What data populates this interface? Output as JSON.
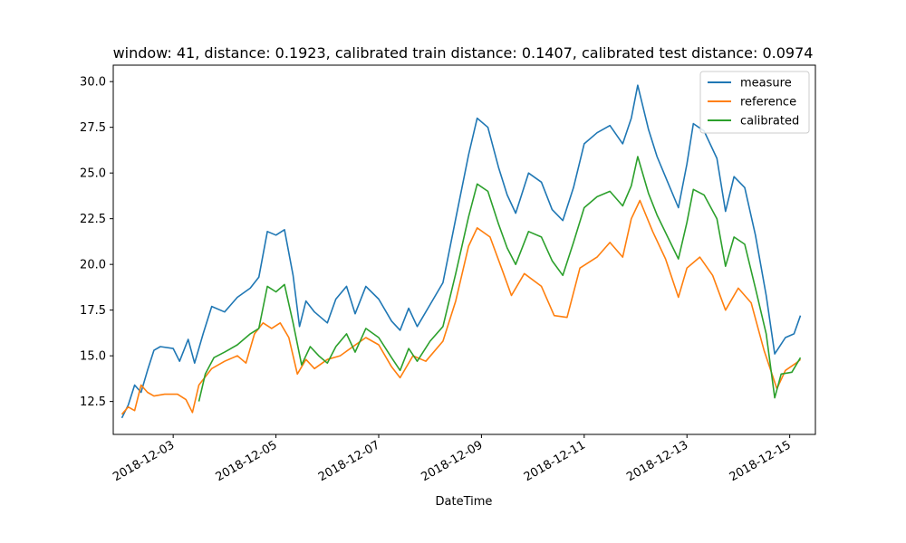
{
  "chart_data": {
    "type": "line",
    "title": "window: 41, distance: 0.1923, calibrated train distance: 0.1407, calibrated test distance: 0.0974",
    "xlabel": "DateTime",
    "ylabel": "",
    "xlim": [
      "2018-12-01T20:00",
      "2018-12-15T12:00"
    ],
    "ylim": [
      10.7,
      30.9
    ],
    "x_ticks": [
      {
        "date": "2018-12-03T00:00",
        "label": "2018-12-03"
      },
      {
        "date": "2018-12-05T00:00",
        "label": "2018-12-05"
      },
      {
        "date": "2018-12-07T00:00",
        "label": "2018-12-07"
      },
      {
        "date": "2018-12-09T00:00",
        "label": "2018-12-09"
      },
      {
        "date": "2018-12-11T00:00",
        "label": "2018-12-11"
      },
      {
        "date": "2018-12-13T00:00",
        "label": "2018-12-13"
      },
      {
        "date": "2018-12-15T00:00",
        "label": "2018-12-15"
      }
    ],
    "y_ticks": [
      {
        "value": 12.5,
        "label": "12.5"
      },
      {
        "value": 15.0,
        "label": "15.0"
      },
      {
        "value": 17.5,
        "label": "17.5"
      },
      {
        "value": 20.0,
        "label": "20.0"
      },
      {
        "value": 22.5,
        "label": "22.5"
      },
      {
        "value": 25.0,
        "label": "25.0"
      },
      {
        "value": 27.5,
        "label": "27.5"
      },
      {
        "value": 30.0,
        "label": "30.0"
      }
    ],
    "grid": false,
    "legend": "top-right",
    "series": [
      {
        "name": "measure",
        "color": "#1f77b4",
        "points": [
          [
            "2018-12-02T00:00",
            11.6
          ],
          [
            "2018-12-02T03:00",
            12.3
          ],
          [
            "2018-12-02T06:00",
            13.4
          ],
          [
            "2018-12-02T09:00",
            13.0
          ],
          [
            "2018-12-02T12:00",
            14.2
          ],
          [
            "2018-12-02T15:00",
            15.3
          ],
          [
            "2018-12-02T18:00",
            15.5
          ],
          [
            "2018-12-03T00:00",
            15.4
          ],
          [
            "2018-12-03T03:00",
            14.7
          ],
          [
            "2018-12-03T07:00",
            15.9
          ],
          [
            "2018-12-03T10:00",
            14.6
          ],
          [
            "2018-12-03T14:00",
            16.2
          ],
          [
            "2018-12-03T18:00",
            17.7
          ],
          [
            "2018-12-04T00:00",
            17.4
          ],
          [
            "2018-12-04T06:00",
            18.2
          ],
          [
            "2018-12-04T12:00",
            18.7
          ],
          [
            "2018-12-04T16:00",
            19.3
          ],
          [
            "2018-12-04T20:00",
            21.8
          ],
          [
            "2018-12-05T00:00",
            21.6
          ],
          [
            "2018-12-05T04:00",
            21.9
          ],
          [
            "2018-12-05T08:00",
            19.4
          ],
          [
            "2018-12-05T11:00",
            16.6
          ],
          [
            "2018-12-05T14:00",
            18.0
          ],
          [
            "2018-12-05T18:00",
            17.4
          ],
          [
            "2018-12-06T00:00",
            16.8
          ],
          [
            "2018-12-06T04:00",
            18.1
          ],
          [
            "2018-12-06T09:00",
            18.8
          ],
          [
            "2018-12-06T13:00",
            17.3
          ],
          [
            "2018-12-06T18:00",
            18.8
          ],
          [
            "2018-12-07T00:00",
            18.1
          ],
          [
            "2018-12-07T06:00",
            16.9
          ],
          [
            "2018-12-07T10:00",
            16.4
          ],
          [
            "2018-12-07T14:00",
            17.6
          ],
          [
            "2018-12-07T18:00",
            16.6
          ],
          [
            "2018-12-08T00:00",
            17.8
          ],
          [
            "2018-12-08T06:00",
            19.0
          ],
          [
            "2018-12-08T12:00",
            22.5
          ],
          [
            "2018-12-08T18:00",
            26.0
          ],
          [
            "2018-12-08T22:00",
            28.0
          ],
          [
            "2018-12-09T03:00",
            27.5
          ],
          [
            "2018-12-09T08:00",
            25.3
          ],
          [
            "2018-12-09T12:00",
            23.8
          ],
          [
            "2018-12-09T16:00",
            22.8
          ],
          [
            "2018-12-09T22:00",
            25.0
          ],
          [
            "2018-12-10T04:00",
            24.5
          ],
          [
            "2018-12-10T09:00",
            23.0
          ],
          [
            "2018-12-10T14:00",
            22.4
          ],
          [
            "2018-12-10T19:00",
            24.2
          ],
          [
            "2018-12-11T00:00",
            26.6
          ],
          [
            "2018-12-11T06:00",
            27.2
          ],
          [
            "2018-12-11T12:00",
            27.6
          ],
          [
            "2018-12-11T18:00",
            26.6
          ],
          [
            "2018-12-11T22:00",
            28.0
          ],
          [
            "2018-12-12T01:00",
            29.8
          ],
          [
            "2018-12-12T06:00",
            27.4
          ],
          [
            "2018-12-12T10:00",
            25.9
          ],
          [
            "2018-12-12T15:00",
            24.5
          ],
          [
            "2018-12-12T20:00",
            23.1
          ],
          [
            "2018-12-13T00:00",
            25.5
          ],
          [
            "2018-12-13T03:00",
            27.7
          ],
          [
            "2018-12-13T08:00",
            27.3
          ],
          [
            "2018-12-13T14:00",
            25.8
          ],
          [
            "2018-12-13T18:00",
            22.9
          ],
          [
            "2018-12-13T22:00",
            24.8
          ],
          [
            "2018-12-14T03:00",
            24.2
          ],
          [
            "2018-12-14T08:00",
            21.6
          ],
          [
            "2018-12-14T13:00",
            18.3
          ],
          [
            "2018-12-14T17:00",
            15.1
          ],
          [
            "2018-12-14T22:00",
            16.0
          ],
          [
            "2018-12-15T02:00",
            16.2
          ],
          [
            "2018-12-15T05:00",
            17.2
          ]
        ]
      },
      {
        "name": "reference",
        "color": "#ff7f0e",
        "points": [
          [
            "2018-12-02T00:00",
            11.8
          ],
          [
            "2018-12-02T03:00",
            12.2
          ],
          [
            "2018-12-02T06:00",
            12.0
          ],
          [
            "2018-12-02T09:00",
            13.4
          ],
          [
            "2018-12-02T12:00",
            13.0
          ],
          [
            "2018-12-02T15:00",
            12.8
          ],
          [
            "2018-12-02T20:00",
            12.9
          ],
          [
            "2018-12-03T02:00",
            12.9
          ],
          [
            "2018-12-03T06:00",
            12.6
          ],
          [
            "2018-12-03T09:00",
            11.9
          ],
          [
            "2018-12-03T12:00",
            13.4
          ],
          [
            "2018-12-03T18:00",
            14.3
          ],
          [
            "2018-12-04T00:00",
            14.7
          ],
          [
            "2018-12-04T06:00",
            15.0
          ],
          [
            "2018-12-04T10:00",
            14.6
          ],
          [
            "2018-12-04T14:00",
            16.2
          ],
          [
            "2018-12-04T18:00",
            16.8
          ],
          [
            "2018-12-04T22:00",
            16.5
          ],
          [
            "2018-12-05T02:00",
            16.8
          ],
          [
            "2018-12-05T06:00",
            16.0
          ],
          [
            "2018-12-05T10:00",
            14.0
          ],
          [
            "2018-12-05T14:00",
            14.8
          ],
          [
            "2018-12-05T18:00",
            14.3
          ],
          [
            "2018-12-06T00:00",
            14.8
          ],
          [
            "2018-12-06T06:00",
            15.0
          ],
          [
            "2018-12-06T12:00",
            15.5
          ],
          [
            "2018-12-06T18:00",
            16.0
          ],
          [
            "2018-12-07T00:00",
            15.6
          ],
          [
            "2018-12-07T06:00",
            14.4
          ],
          [
            "2018-12-07T10:00",
            13.8
          ],
          [
            "2018-12-07T16:00",
            15.0
          ],
          [
            "2018-12-07T22:00",
            14.7
          ],
          [
            "2018-12-08T06:00",
            15.8
          ],
          [
            "2018-12-08T12:00",
            18.0
          ],
          [
            "2018-12-08T18:00",
            21.0
          ],
          [
            "2018-12-08T22:00",
            22.0
          ],
          [
            "2018-12-09T04:00",
            21.5
          ],
          [
            "2018-12-09T10:00",
            19.6
          ],
          [
            "2018-12-09T14:00",
            18.3
          ],
          [
            "2018-12-09T20:00",
            19.5
          ],
          [
            "2018-12-10T04:00",
            18.8
          ],
          [
            "2018-12-10T10:00",
            17.2
          ],
          [
            "2018-12-10T16:00",
            17.1
          ],
          [
            "2018-12-10T22:00",
            19.8
          ],
          [
            "2018-12-11T06:00",
            20.4
          ],
          [
            "2018-12-11T12:00",
            21.2
          ],
          [
            "2018-12-11T18:00",
            20.4
          ],
          [
            "2018-12-11T22:00",
            22.5
          ],
          [
            "2018-12-12T02:00",
            23.5
          ],
          [
            "2018-12-12T08:00",
            21.8
          ],
          [
            "2018-12-12T14:00",
            20.3
          ],
          [
            "2018-12-12T20:00",
            18.2
          ],
          [
            "2018-12-13T00:00",
            19.8
          ],
          [
            "2018-12-13T06:00",
            20.4
          ],
          [
            "2018-12-13T12:00",
            19.4
          ],
          [
            "2018-12-13T18:00",
            17.5
          ],
          [
            "2018-12-14T00:00",
            18.7
          ],
          [
            "2018-12-14T06:00",
            17.9
          ],
          [
            "2018-12-14T12:00",
            15.3
          ],
          [
            "2018-12-14T18:00",
            13.2
          ],
          [
            "2018-12-14T22:00",
            14.2
          ],
          [
            "2018-12-15T03:00",
            14.6
          ],
          [
            "2018-12-15T05:00",
            14.8
          ]
        ]
      },
      {
        "name": "calibrated",
        "color": "#2ca02c",
        "points": [
          [
            "2018-12-03T12:00",
            12.5
          ],
          [
            "2018-12-03T15:00",
            14.0
          ],
          [
            "2018-12-03T19:00",
            14.9
          ],
          [
            "2018-12-04T00:00",
            15.2
          ],
          [
            "2018-12-04T06:00",
            15.6
          ],
          [
            "2018-12-04T12:00",
            16.2
          ],
          [
            "2018-12-04T16:00",
            16.5
          ],
          [
            "2018-12-04T20:00",
            18.8
          ],
          [
            "2018-12-05T00:00",
            18.5
          ],
          [
            "2018-12-05T04:00",
            18.9
          ],
          [
            "2018-12-05T08:00",
            16.8
          ],
          [
            "2018-12-05T12:00",
            14.5
          ],
          [
            "2018-12-05T16:00",
            15.5
          ],
          [
            "2018-12-05T20:00",
            15.0
          ],
          [
            "2018-12-06T00:00",
            14.6
          ],
          [
            "2018-12-06T04:00",
            15.5
          ],
          [
            "2018-12-06T09:00",
            16.2
          ],
          [
            "2018-12-06T13:00",
            15.2
          ],
          [
            "2018-12-06T18:00",
            16.5
          ],
          [
            "2018-12-07T00:00",
            16.0
          ],
          [
            "2018-12-07T06:00",
            14.9
          ],
          [
            "2018-12-07T10:00",
            14.2
          ],
          [
            "2018-12-07T14:00",
            15.4
          ],
          [
            "2018-12-07T18:00",
            14.7
          ],
          [
            "2018-12-08T00:00",
            15.8
          ],
          [
            "2018-12-08T06:00",
            16.6
          ],
          [
            "2018-12-08T12:00",
            19.5
          ],
          [
            "2018-12-08T18:00",
            22.6
          ],
          [
            "2018-12-08T22:00",
            24.4
          ],
          [
            "2018-12-09T03:00",
            24.0
          ],
          [
            "2018-12-09T08:00",
            22.2
          ],
          [
            "2018-12-09T12:00",
            20.9
          ],
          [
            "2018-12-09T16:00",
            20.0
          ],
          [
            "2018-12-09T22:00",
            21.8
          ],
          [
            "2018-12-10T04:00",
            21.5
          ],
          [
            "2018-12-10T09:00",
            20.2
          ],
          [
            "2018-12-10T14:00",
            19.4
          ],
          [
            "2018-12-10T19:00",
            21.2
          ],
          [
            "2018-12-11T00:00",
            23.1
          ],
          [
            "2018-12-11T06:00",
            23.7
          ],
          [
            "2018-12-11T12:00",
            24.0
          ],
          [
            "2018-12-11T18:00",
            23.2
          ],
          [
            "2018-12-11T22:00",
            24.3
          ],
          [
            "2018-12-12T01:00",
            25.9
          ],
          [
            "2018-12-12T06:00",
            23.9
          ],
          [
            "2018-12-12T10:00",
            22.7
          ],
          [
            "2018-12-12T15:00",
            21.5
          ],
          [
            "2018-12-12T20:00",
            20.3
          ],
          [
            "2018-12-13T00:00",
            22.3
          ],
          [
            "2018-12-13T03:00",
            24.1
          ],
          [
            "2018-12-13T08:00",
            23.8
          ],
          [
            "2018-12-13T14:00",
            22.5
          ],
          [
            "2018-12-13T18:00",
            19.9
          ],
          [
            "2018-12-13T22:00",
            21.5
          ],
          [
            "2018-12-14T03:00",
            21.1
          ],
          [
            "2018-12-14T08:00",
            18.7
          ],
          [
            "2018-12-14T13:00",
            16.2
          ],
          [
            "2018-12-14T17:00",
            12.7
          ],
          [
            "2018-12-14T20:00",
            14.0
          ],
          [
            "2018-12-15T01:00",
            14.1
          ],
          [
            "2018-12-15T05:00",
            14.9
          ]
        ]
      }
    ]
  }
}
